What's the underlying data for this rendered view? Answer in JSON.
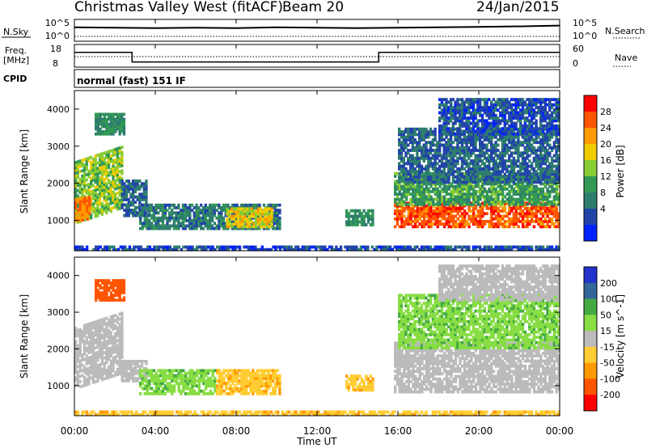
{
  "header": {
    "station": "Christmas Valley West (fitACF)",
    "beam": "Beam 20",
    "date": "24/Jan/2015"
  },
  "noise_panel": {
    "left_label": "N.Sky",
    "right_label": "N.Search",
    "left_ticks": [
      "10^5",
      "10^0"
    ],
    "right_ticks": [
      "10^5",
      "10^0"
    ]
  },
  "freq_panel": {
    "left_label_1": "Freq.",
    "left_label_2": "[MHz]",
    "right_label": "Nave",
    "left_ticks": [
      "18",
      "8"
    ],
    "right_ticks": [
      "60",
      "0"
    ]
  },
  "cpid": {
    "label": "CPID",
    "mode": "normal (fast) 151 IF"
  },
  "x_axis": {
    "title": "Time UT",
    "ticks": [
      "00:00",
      "04:00",
      "08:00",
      "12:00",
      "16:00",
      "20:00",
      "00:00"
    ]
  },
  "power_colorbar": {
    "title": "Power [dB]",
    "labels": [
      "28",
      "24",
      "20",
      "16",
      "12",
      "8",
      "4"
    ],
    "colors": [
      "#ff0000",
      "#ff5500",
      "#ff9900",
      "#eecc00",
      "#88cc33",
      "#339955",
      "#2e7d6e",
      "#2244aa",
      "#0022ff"
    ]
  },
  "velocity_colorbar": {
    "title": "Velocity [m s^-1]",
    "labels": [
      "200",
      "100",
      "50",
      "15",
      "-15",
      "-50",
      "-100",
      "-200"
    ],
    "colors": [
      "#2233cc",
      "#336699",
      "#44aa44",
      "#88dd44",
      "#bbbbbb",
      "#ffcc33",
      "#ff9900",
      "#ff5500",
      "#ff0000"
    ]
  },
  "chart_data": [
    {
      "type": "line",
      "title": "",
      "series": [
        {
          "name": "N.Sky",
          "x_hours": [
            0,
            2,
            4,
            6,
            8,
            10,
            12,
            14,
            16,
            18,
            20,
            22,
            24
          ],
          "y": [
            3.2,
            3.1,
            3.0,
            3.1,
            3.0,
            3.2,
            3.1,
            3.0,
            3.1,
            3.2,
            3.3,
            3.4,
            3.6
          ]
        },
        {
          "name": "N.Search",
          "x_hours": [
            0,
            24
          ],
          "y": [
            0.6,
            0.6
          ]
        }
      ],
      "ylim_log10": [
        0,
        5
      ]
    },
    {
      "type": "line",
      "series": [
        {
          "name": "Freq.",
          "x_hours": [
            0,
            2.85,
            2.85,
            15.05,
            15.05,
            24
          ],
          "y": [
            14.5,
            14.5,
            10.3,
            10.3,
            14.5,
            14.5
          ]
        },
        {
          "name": "Nave",
          "x_hours": [
            0,
            24
          ],
          "y": [
            20,
            20
          ]
        }
      ],
      "ylim": [
        8,
        18
      ],
      "ylim_right": [
        0,
        60
      ]
    },
    {
      "type": "heatmap",
      "title": "",
      "ylabel": "Slant Range [km]",
      "xlabel": "Time UT",
      "xlim_hours": [
        0,
        24
      ],
      "ylim": [
        180,
        4500
      ],
      "yticks": [
        "1000",
        "2000",
        "3000",
        "4000"
      ],
      "quantity": "Power [dB]",
      "patches": [
        {
          "t0": 0.0,
          "t1": 2.4,
          "r0": 900,
          "r1": 2600,
          "value": 16,
          "slope": 600
        },
        {
          "t0": 0.0,
          "t1": 0.8,
          "r0": 950,
          "r1": 1600,
          "value": 26,
          "slope": 300
        },
        {
          "t0": 1.0,
          "t1": 2.5,
          "r0": 3300,
          "r1": 3900,
          "value": 10,
          "slope": 0
        },
        {
          "t0": 2.3,
          "t1": 3.6,
          "r0": 1100,
          "r1": 2100,
          "value": 6,
          "slope": 0
        },
        {
          "t0": 3.2,
          "t1": 10.2,
          "r0": 750,
          "r1": 1450,
          "value": 8,
          "slope": 0
        },
        {
          "t0": 7.5,
          "t1": 9.8,
          "r0": 800,
          "r1": 1350,
          "value": 20,
          "slope": 0
        },
        {
          "t0": 13.4,
          "t1": 14.8,
          "r0": 850,
          "r1": 1300,
          "value": 10,
          "slope": 0
        },
        {
          "t0": 15.8,
          "t1": 24.0,
          "r0": 800,
          "r1": 1500,
          "value": 28,
          "slope": 0
        },
        {
          "t0": 15.8,
          "t1": 24.0,
          "r0": 1400,
          "r1": 2300,
          "value": 12,
          "slope": 0
        },
        {
          "t0": 16.0,
          "t1": 24.0,
          "r0": 2000,
          "r1": 3500,
          "value": 6,
          "slope": 0
        },
        {
          "t0": 18.0,
          "t1": 24.0,
          "r0": 3300,
          "r1": 4300,
          "value": 4,
          "slope": 0
        },
        {
          "t0": 0.0,
          "t1": 24.0,
          "r0": 180,
          "r1": 320,
          "value": 4,
          "slope": 0
        }
      ]
    },
    {
      "type": "heatmap",
      "title": "",
      "ylabel": "Slant Range [km]",
      "xlabel": "Time UT",
      "xlim_hours": [
        0,
        24
      ],
      "ylim": [
        180,
        4500
      ],
      "yticks": [
        "1000",
        "2000",
        "3000",
        "4000"
      ],
      "quantity": "Velocity [m s^-1]",
      "patches": [
        {
          "t0": 0.0,
          "t1": 2.4,
          "r0": 900,
          "r1": 2600,
          "value": 0,
          "slope": 600
        },
        {
          "t0": 1.0,
          "t1": 2.5,
          "r0": 3300,
          "r1": 3900,
          "value": -120,
          "slope": 0
        },
        {
          "t0": 2.3,
          "t1": 3.6,
          "r0": 1100,
          "r1": 1700,
          "value": 0,
          "slope": 0
        },
        {
          "t0": 3.2,
          "t1": 7.0,
          "r0": 750,
          "r1": 1450,
          "value": 40,
          "slope": 0
        },
        {
          "t0": 7.0,
          "t1": 10.2,
          "r0": 750,
          "r1": 1450,
          "value": -40,
          "slope": 0
        },
        {
          "t0": 13.4,
          "t1": 14.8,
          "r0": 850,
          "r1": 1300,
          "value": -40,
          "slope": 0
        },
        {
          "t0": 15.8,
          "t1": 24.0,
          "r0": 800,
          "r1": 2200,
          "value": 0,
          "slope": 0
        },
        {
          "t0": 16.0,
          "t1": 24.0,
          "r0": 2000,
          "r1": 3500,
          "value": 40,
          "slope": 0
        },
        {
          "t0": 18.0,
          "t1": 24.0,
          "r0": 3300,
          "r1": 4300,
          "value": 0,
          "slope": 0
        },
        {
          "t0": 0.0,
          "t1": 24.0,
          "r0": 180,
          "r1": 320,
          "value": -40,
          "slope": 0
        }
      ]
    }
  ]
}
